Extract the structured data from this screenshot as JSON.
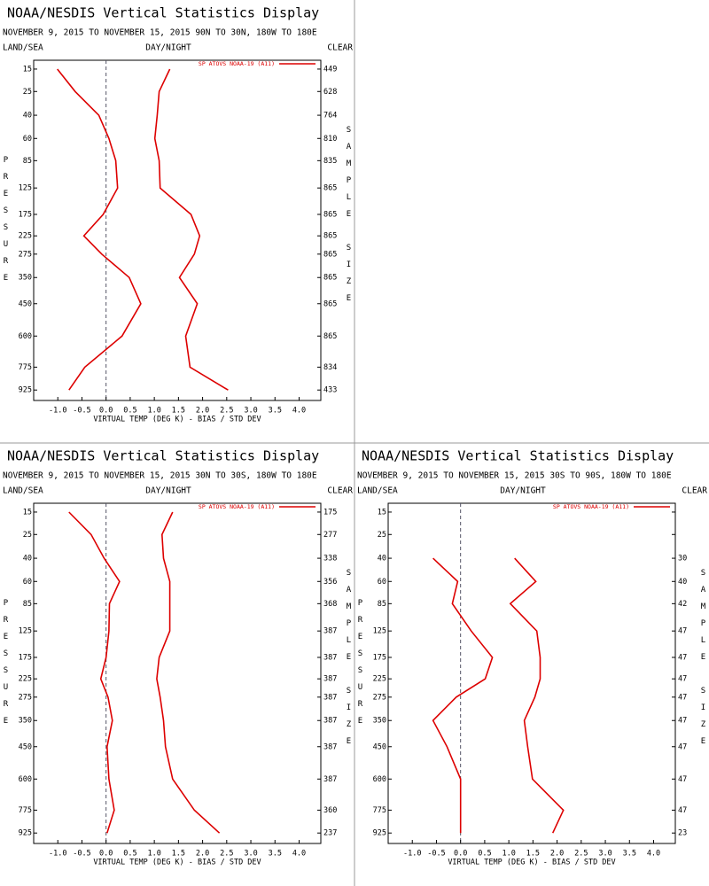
{
  "chart_data": [
    {
      "type": "line",
      "title": "NOAA/NESDIS Vertical Statistics Display",
      "subtitle": "NOVEMBER 9, 2015 TO NOVEMBER 15, 2015 90N TO 30N, 180W TO 180E",
      "left_label": "LAND/SEA",
      "center_label": "DAY/NIGHT",
      "right_label": "CLEAR",
      "ylabel": "PRESSURE",
      "y2label": "SAMPLE SIZE",
      "xlabel": "VIRTUAL TEMP (DEG K) - BIAS / STD DEV",
      "legend": "SP ATOVS NOAA-19 (A11)",
      "legend_position": "upper right",
      "y": [
        15,
        25,
        40,
        60,
        85,
        125,
        175,
        225,
        275,
        350,
        450,
        600,
        775,
        925
      ],
      "ylim": [
        12,
        1000
      ],
      "xlim": [
        -1.5,
        4.45
      ],
      "xticks": [
        {
          "value": -1,
          "label": "-1.0"
        },
        {
          "value": -0.5,
          "label": "-0.5"
        },
        {
          "value": 0,
          "label": "0.0"
        },
        {
          "value": 0.5,
          "label": "0.5"
        },
        {
          "value": 1,
          "label": "1.0"
        },
        {
          "value": 1.5,
          "label": "1.5"
        },
        {
          "value": 2,
          "label": "2.0"
        },
        {
          "value": 2.5,
          "label": "2.5"
        },
        {
          "value": 3,
          "label": "3.0"
        },
        {
          "value": 3.5,
          "label": "3.5"
        },
        {
          "value": 4,
          "label": "4.0"
        }
      ],
      "series": [
        {
          "color": "#dd0000",
          "values": [
            -1.01,
            -0.64,
            -0.15,
            0.06,
            0.2,
            0.24,
            -0.06,
            -0.46,
            -0.09,
            0.48,
            0.72,
            0.33,
            -0.44,
            -0.77
          ]
        },
        {
          "color": "#dd0000",
          "values": [
            1.32,
            1.1,
            1.06,
            1.01,
            1.1,
            1.12,
            1.76,
            1.94,
            1.83,
            1.52,
            1.89,
            1.65,
            1.74,
            2.53
          ]
        }
      ],
      "sample_sizes": [
        449,
        628,
        764,
        810,
        835,
        865,
        865,
        865,
        865,
        865,
        865,
        865,
        834,
        433
      ]
    },
    {
      "type": "line",
      "title": "NOAA/NESDIS Vertical Statistics Display",
      "subtitle": "NOVEMBER 9, 2015 TO NOVEMBER 15, 2015 30N TO 30S, 180W TO 180E",
      "left_label": "LAND/SEA",
      "center_label": "DAY/NIGHT",
      "right_label": "CLEAR",
      "ylabel": "PRESSURE",
      "y2label": "SAMPLE SIZE",
      "xlabel": "VIRTUAL TEMP (DEG K) - BIAS / STD DEV",
      "legend": "SP ATOVS NOAA-19 (A11)",
      "legend_position": "upper right",
      "y": [
        15,
        25,
        40,
        60,
        85,
        125,
        175,
        225,
        275,
        350,
        450,
        600,
        775,
        925
      ],
      "ylim": [
        12,
        1000
      ],
      "xlim": [
        -1.5,
        4.45
      ],
      "xticks": [
        {
          "value": -1,
          "label": "-1.0"
        },
        {
          "value": -0.5,
          "label": "-0.5"
        },
        {
          "value": 0,
          "label": "0.0"
        },
        {
          "value": 0.5,
          "label": "0.5"
        },
        {
          "value": 1,
          "label": "1.0"
        },
        {
          "value": 1.5,
          "label": "1.5"
        },
        {
          "value": 2,
          "label": "2.0"
        },
        {
          "value": 2.5,
          "label": "2.5"
        },
        {
          "value": 3,
          "label": "3.0"
        },
        {
          "value": 3.5,
          "label": "3.5"
        },
        {
          "value": 4,
          "label": "4.0"
        }
      ],
      "series": [
        {
          "color": "#dd0000",
          "values": [
            -0.77,
            -0.31,
            -0.04,
            0.28,
            0.07,
            0.06,
            0,
            -0.11,
            0.04,
            0.13,
            0.02,
            0.06,
            0.17,
            0.02
          ]
        },
        {
          "color": "#dd0000",
          "values": [
            1.38,
            1.16,
            1.19,
            1.32,
            1.32,
            1.32,
            1.1,
            1.05,
            1.12,
            1.19,
            1.23,
            1.38,
            1.83,
            2.35
          ]
        }
      ],
      "sample_sizes": [
        175,
        277,
        338,
        356,
        368,
        387,
        387,
        387,
        387,
        387,
        387,
        387,
        360,
        237
      ]
    },
    {
      "type": "line",
      "title": "NOAA/NESDIS Vertical Statistics Display",
      "subtitle": "NOVEMBER 9, 2015 TO NOVEMBER 15, 2015 30S TO 90S, 180W TO 180E",
      "left_label": "LAND/SEA",
      "center_label": "DAY/NIGHT",
      "right_label": "CLEAR",
      "ylabel": "PRESSURE",
      "y2label": "SAMPLE SIZE",
      "xlabel": "VIRTUAL TEMP (DEG K) - BIAS / STD DEV",
      "legend": "SP ATOVS NOAA-19 (A11)",
      "legend_position": "upper right",
      "y": [
        15,
        25,
        40,
        60,
        85,
        125,
        175,
        225,
        275,
        350,
        450,
        600,
        775,
        925
      ],
      "ylim": [
        12,
        1000
      ],
      "xlim": [
        -1.5,
        4.45
      ],
      "xticks": [
        {
          "value": -1,
          "label": "-1.0"
        },
        {
          "value": -0.5,
          "label": "-0.5"
        },
        {
          "value": 0,
          "label": "0.0"
        },
        {
          "value": 0.5,
          "label": "0.5"
        },
        {
          "value": 1,
          "label": "1.0"
        },
        {
          "value": 1.5,
          "label": "1.5"
        },
        {
          "value": 2,
          "label": "2.0"
        },
        {
          "value": 2.5,
          "label": "2.5"
        },
        {
          "value": 3,
          "label": "3.0"
        },
        {
          "value": 3.5,
          "label": "3.5"
        },
        {
          "value": 4,
          "label": "4.0"
        }
      ],
      "series": [
        {
          "color": "#dd0000",
          "values": [
            null,
            null,
            -0.57,
            -0.06,
            -0.17,
            0.22,
            0.66,
            0.51,
            -0.09,
            -0.57,
            -0.28,
            0,
            0,
            0
          ]
        },
        {
          "color": "#dd0000",
          "values": [
            null,
            null,
            1.12,
            1.56,
            1.03,
            1.58,
            1.65,
            1.65,
            1.54,
            1.32,
            1.39,
            1.49,
            2.13,
            1.91
          ]
        }
      ],
      "sample_sizes": [
        null,
        null,
        30,
        40,
        42,
        47,
        47,
        47,
        47,
        47,
        47,
        47,
        47,
        23
      ]
    }
  ]
}
